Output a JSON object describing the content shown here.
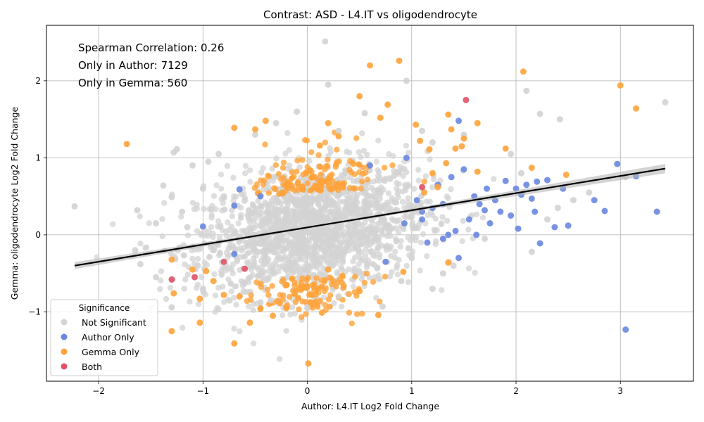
{
  "chart_data": {
    "type": "scatter",
    "title": "Contrast: ASD - L4.IT vs oligodendrocyte",
    "xlabel": "Author: L4.IT Log2 Fold Change",
    "ylabel": "Gemma: oligodendrocyte Log2 Fold Change",
    "xlim": [
      -2.5,
      3.7
    ],
    "ylim": [
      -1.9,
      2.72
    ],
    "x_ticks": [
      "−2",
      "−1",
      "0",
      "1",
      "2",
      "3"
    ],
    "y_ticks": [
      "−1",
      "0",
      "1",
      "2"
    ],
    "grid": true,
    "annotations": [
      "Spearman Correlation: 0.26",
      "Only in Author: 7129",
      "Only in Gemma: 560"
    ],
    "legend": {
      "title": "Significance",
      "placement": "lower-left",
      "entries": [
        "Not Significant",
        "Author Only",
        "Gemma Only",
        "Both"
      ]
    },
    "colors": {
      "not_significant": "#d3d3d3",
      "author_only": "#6a87e0",
      "gemma_only": "#ffa33a",
      "both": "#e0526a",
      "fit_line": "#000000",
      "ci_band": "#b5b5b5"
    },
    "fit_line": {
      "x": [
        -2.23,
        3.43
      ],
      "y": [
        -0.4,
        0.86
      ]
    },
    "series": [
      {
        "key": "not_significant",
        "points": [
          [
            -2.23,
            0.37
          ],
          [
            -1.63,
            0.32
          ],
          [
            -1.45,
            0.15
          ],
          [
            -1.38,
            0.64
          ],
          [
            -1.3,
            0.49
          ],
          [
            -1.28,
            1.07
          ],
          [
            -1.25,
            1.11
          ],
          [
            -1.3,
            -0.94
          ],
          [
            -1.45,
            -0.55
          ],
          [
            -1.6,
            -0.38
          ],
          [
            -1.65,
            -0.2
          ],
          [
            0.17,
            2.51
          ],
          [
            0.2,
            1.95
          ],
          [
            0.95,
            2.0
          ],
          [
            2.1,
            1.87
          ],
          [
            2.23,
            1.57
          ],
          [
            2.42,
            1.5
          ],
          [
            3.43,
            1.72
          ],
          [
            2.55,
            0.45
          ],
          [
            2.7,
            0.55
          ],
          [
            3.05,
            0.75
          ],
          [
            2.4,
            0.35
          ],
          [
            2.3,
            0.2
          ],
          [
            -0.1,
            1.6
          ],
          [
            -0.3,
            1.45
          ],
          [
            0.55,
            1.58
          ],
          [
            1.1,
            1.35
          ],
          [
            1.2,
            1.2
          ],
          [
            0.3,
            1.35
          ],
          [
            -0.5,
            1.3
          ],
          [
            1.5,
            1.3
          ],
          [
            1.95,
            1.05
          ],
          [
            2.05,
            0.8
          ],
          [
            0.0,
            -0.95
          ],
          [
            -0.35,
            -0.85
          ],
          [
            0.3,
            -0.8
          ],
          [
            0.72,
            -0.93
          ],
          [
            1.2,
            -0.7
          ],
          [
            1.3,
            -0.5
          ],
          [
            -1.0,
            -0.7
          ],
          [
            0.9,
            -0.6
          ],
          [
            1.4,
            -0.4
          ],
          [
            1.0,
            -0.3
          ],
          [
            1.7,
            -0.05
          ],
          [
            2.15,
            -0.22
          ],
          [
            -1.1,
            0.9
          ],
          [
            -1.0,
            0.6
          ],
          [
            -0.9,
            -0.2
          ],
          [
            -0.8,
            0.5
          ],
          [
            -1.2,
            0.3
          ],
          [
            -1.05,
            -0.4
          ],
          [
            -0.95,
            0.95
          ],
          [
            -0.85,
            1.05
          ],
          [
            -1.15,
            0.1
          ]
        ]
      },
      {
        "key": "author_only",
        "points": [
          [
            -1.0,
            0.11
          ],
          [
            -0.7,
            0.38
          ],
          [
            -0.65,
            0.59
          ],
          [
            -0.7,
            -0.25
          ],
          [
            -0.45,
            0.5
          ],
          [
            0.6,
            0.9
          ],
          [
            0.95,
            1.0
          ],
          [
            0.75,
            -0.35
          ],
          [
            0.93,
            0.15
          ],
          [
            1.05,
            0.45
          ],
          [
            1.1,
            0.2
          ],
          [
            1.15,
            -0.1
          ],
          [
            1.2,
            0.35
          ],
          [
            1.25,
            0.65
          ],
          [
            1.3,
            0.4
          ],
          [
            1.35,
            0.0
          ],
          [
            1.38,
            0.75
          ],
          [
            1.42,
            0.05
          ],
          [
            1.45,
            1.48
          ],
          [
            1.5,
            0.85
          ],
          [
            1.55,
            0.2
          ],
          [
            1.6,
            0.5
          ],
          [
            1.65,
            0.4
          ],
          [
            1.7,
            0.32
          ],
          [
            1.72,
            0.6
          ],
          [
            1.75,
            0.15
          ],
          [
            1.8,
            0.45
          ],
          [
            1.85,
            0.3
          ],
          [
            1.9,
            0.7
          ],
          [
            1.95,
            0.25
          ],
          [
            2.0,
            0.6
          ],
          [
            2.02,
            0.08
          ],
          [
            2.05,
            0.52
          ],
          [
            2.1,
            0.65
          ],
          [
            2.15,
            0.47
          ],
          [
            2.18,
            0.3
          ],
          [
            2.2,
            0.69
          ],
          [
            2.23,
            -0.11
          ],
          [
            2.3,
            0.71
          ],
          [
            2.37,
            0.1
          ],
          [
            2.45,
            0.6
          ],
          [
            2.5,
            0.12
          ],
          [
            2.75,
            0.45
          ],
          [
            2.85,
            0.31
          ],
          [
            2.97,
            0.92
          ],
          [
            3.05,
            -1.23
          ],
          [
            3.15,
            0.76
          ],
          [
            3.35,
            0.3
          ],
          [
            1.62,
            0.0
          ],
          [
            1.45,
            -0.3
          ],
          [
            1.3,
            -0.05
          ],
          [
            1.1,
            0.3
          ]
        ]
      },
      {
        "key": "gemma_only",
        "points": [
          [
            -1.73,
            1.18
          ],
          [
            -1.3,
            -0.32
          ],
          [
            -1.3,
            -1.25
          ],
          [
            -1.28,
            -0.76
          ],
          [
            -1.1,
            -0.45
          ],
          [
            -1.03,
            -0.83
          ],
          [
            -1.03,
            -1.14
          ],
          [
            -0.97,
            -0.47
          ],
          [
            -0.7,
            -1.41
          ],
          [
            -0.7,
            1.39
          ],
          [
            -0.55,
            -1.14
          ],
          [
            -0.5,
            1.37
          ],
          [
            -0.4,
            1.48
          ],
          [
            -0.33,
            -1.05
          ],
          [
            -0.2,
            -0.95
          ],
          [
            0.01,
            -1.67
          ],
          [
            0.12,
            1.16
          ],
          [
            0.14,
            -1.01
          ],
          [
            0.2,
            1.45
          ],
          [
            0.3,
            1.28
          ],
          [
            0.5,
            1.8
          ],
          [
            0.6,
            2.2
          ],
          [
            0.7,
            1.52
          ],
          [
            0.77,
            1.69
          ],
          [
            0.88,
            2.26
          ],
          [
            0.68,
            -1.04
          ],
          [
            1.04,
            1.43
          ],
          [
            1.08,
            1.22
          ],
          [
            1.12,
            0.55
          ],
          [
            1.17,
            1.11
          ],
          [
            1.2,
            0.8
          ],
          [
            1.25,
            0.62
          ],
          [
            1.33,
            0.93
          ],
          [
            1.35,
            1.56
          ],
          [
            1.38,
            1.37
          ],
          [
            1.42,
            1.12
          ],
          [
            1.48,
            1.15
          ],
          [
            1.5,
            1.25
          ],
          [
            1.63,
            1.45
          ],
          [
            1.63,
            0.82
          ],
          [
            1.9,
            1.12
          ],
          [
            2.07,
            2.12
          ],
          [
            2.15,
            0.87
          ],
          [
            2.48,
            0.78
          ],
          [
            3.0,
            1.94
          ],
          [
            3.15,
            1.64
          ],
          [
            1.35,
            -0.36
          ],
          [
            0.92,
            -0.48
          ],
          [
            0.5,
            -0.73
          ],
          [
            -0.9,
            -0.6
          ],
          [
            -0.8,
            -0.78
          ],
          [
            -0.65,
            -0.8
          ],
          [
            -0.45,
            -0.96
          ],
          [
            -0.28,
            -0.86
          ],
          [
            0.2,
            -0.45
          ],
          [
            -0.2,
            -0.65
          ],
          [
            0.05,
            -0.78
          ]
        ]
      },
      {
        "key": "both",
        "points": [
          [
            -1.3,
            -0.58
          ],
          [
            -1.08,
            -0.55
          ],
          [
            -0.8,
            -0.35
          ],
          [
            -0.6,
            -0.44
          ],
          [
            1.52,
            1.75
          ],
          [
            1.1,
            0.62
          ]
        ]
      }
    ]
  }
}
